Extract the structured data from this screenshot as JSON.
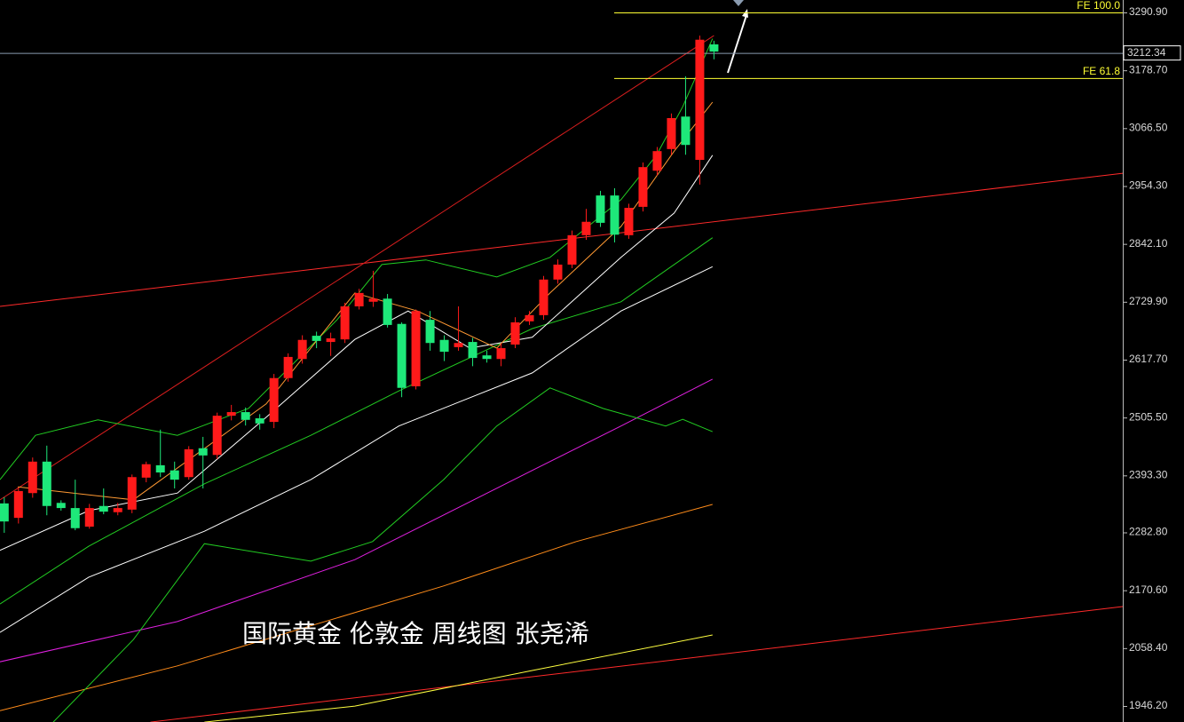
{
  "chart_data": {
    "type": "candlestick",
    "annotation": "国际黄金  伦敦金 周线图 张尧浠",
    "open": [
      2339,
      2311,
      2359,
      2420,
      2340,
      2330,
      2294,
      2334,
      2322,
      2327,
      2389,
      2413,
      2403,
      2390,
      2446,
      2433,
      2509,
      2516,
      2504,
      2497,
      2582,
      2619,
      2664,
      2652,
      2657,
      2721,
      2730,
      2736,
      2687,
      2566,
      2695,
      2656,
      2642,
      2652,
      2626,
      2619,
      2647,
      2692,
      2704,
      2773,
      2802,
      2859,
      2936,
      2936,
      2859,
      2914,
      2984,
      3026,
      3089,
      3005,
      3229
    ],
    "high": [
      2351,
      2370,
      2428,
      2451,
      2345,
      2385,
      2338,
      2368,
      2340,
      2395,
      2420,
      2482,
      2420,
      2450,
      2468,
      2515,
      2530,
      2525,
      2512,
      2590,
      2630,
      2665,
      2672,
      2670,
      2728,
      2755,
      2790,
      2745,
      2690,
      2715,
      2712,
      2665,
      2721,
      2660,
      2635,
      2650,
      2700,
      2712,
      2780,
      2812,
      2868,
      2910,
      2945,
      2950,
      2920,
      3000,
      3030,
      3095,
      3167,
      3246,
      3236
    ],
    "low": [
      2282,
      2300,
      2350,
      2316,
      2325,
      2287,
      2290,
      2318,
      2316,
      2320,
      2380,
      2390,
      2368,
      2385,
      2368,
      2425,
      2500,
      2490,
      2482,
      2485,
      2575,
      2610,
      2640,
      2625,
      2650,
      2715,
      2720,
      2680,
      2545,
      2560,
      2635,
      2615,
      2635,
      2605,
      2612,
      2605,
      2640,
      2685,
      2695,
      2765,
      2795,
      2850,
      2875,
      2845,
      2852,
      2905,
      2975,
      3015,
      3015,
      2957,
      3200
    ],
    "close": [
      2304,
      2363,
      2420,
      2334,
      2330,
      2291,
      2330,
      2323,
      2330,
      2390,
      2415,
      2399,
      2385,
      2444,
      2432,
      2509,
      2516,
      2501,
      2494,
      2582,
      2623,
      2656,
      2654,
      2659,
      2721,
      2747,
      2736,
      2685,
      2563,
      2712,
      2650,
      2633,
      2650,
      2621,
      2619,
      2640,
      2690,
      2704,
      2773,
      2802,
      2859,
      2885,
      2883,
      2860,
      2912,
      2991,
      3022,
      3086,
      3034,
      3238,
      3215
    ],
    "up_color": "#ff1a1a",
    "down_color": "#1ee87a",
    "xlim": [
      -0.3,
      78.8
    ],
    "ylim": [
      1915.2,
      3315.0
    ],
    "yticks": [
      {
        "value": 3290.9,
        "label": "3290.90"
      },
      {
        "value": 3178.7,
        "label": "3178.70"
      },
      {
        "value": 3066.5,
        "label": "3066.50"
      },
      {
        "value": 2954.3,
        "label": "2954.30"
      },
      {
        "value": 2842.1,
        "label": "2842.10"
      },
      {
        "value": 2729.9,
        "label": "2729.90"
      },
      {
        "value": 2617.7,
        "label": "2617.70"
      },
      {
        "value": 2505.5,
        "label": "2505.50"
      },
      {
        "value": 2393.3,
        "label": "2393.30"
      },
      {
        "value": 2282.8,
        "label": "2282.80"
      },
      {
        "value": 2170.6,
        "label": "2170.60"
      },
      {
        "value": 2058.4,
        "label": "2058.40"
      },
      {
        "value": 1946.2,
        "label": "1946.20"
      }
    ],
    "last_price": 3212.34,
    "levels": [
      {
        "value": 3290.9,
        "label": "FE 100.0",
        "color": "#ffff33"
      },
      {
        "value": 3163.6,
        "label": "FE 61.8",
        "color": "#ffff33"
      }
    ],
    "overlays": [
      {
        "color": "#ff2a2a",
        "x": [
          -0.3,
          78.8
        ],
        "values": [
          2721,
          2979
        ]
      },
      {
        "color": "#ff2a2a",
        "x": [
          10.3,
          78.8
        ],
        "values": [
          1915,
          2139
        ]
      },
      {
        "color": "#d81e1e",
        "x": [
          -0.3,
          50
        ],
        "values": [
          2346,
          3246
        ]
      },
      {
        "color": "#ff8c1a",
        "x": [
          -0.3,
          12.2,
          30.95,
          40.3,
          49.9
        ],
        "values": [
          1937,
          2024,
          2179,
          2265,
          2337
        ]
      },
      {
        "color": "#e020e0",
        "x": [
          -0.3,
          12.2,
          24.7,
          37.2,
          43.45,
          49.9
        ],
        "values": [
          2032,
          2110,
          2230,
          2403,
          2489,
          2580
        ]
      },
      {
        "color": "#ffff40",
        "x": [
          14.1,
          24.7,
          37.2,
          49.9
        ],
        "values": [
          1915,
          1946,
          2015,
          2084
        ]
      },
      {
        "color": "#22cc22",
        "x": [
          3.45,
          9.1,
          14.1,
          21.6,
          25.95,
          30.95,
          34.7,
          38.45,
          42.2,
          46.6,
          47.8,
          49.9
        ],
        "values": [
          1915,
          2075,
          2261,
          2227,
          2265,
          2385,
          2489,
          2563,
          2523,
          2489,
          2502,
          2478
        ]
      },
      {
        "color": "#22cc22",
        "x": [
          -0.3,
          2.2,
          6.6,
          12.2,
          17.2,
          23.45,
          26.6,
          29.7,
          34.7,
          38.45,
          43.45,
          45.95,
          47.8,
          49.9
        ],
        "values": [
          2385,
          2471,
          2501,
          2471,
          2523,
          2695,
          2802,
          2811,
          2778,
          2816,
          2928,
          3014,
          3108,
          3240
        ]
      },
      {
        "color": "#22cc22",
        "x": [
          -0.3,
          5.95,
          14.1,
          21.6,
          27.8,
          37.2,
          43.45,
          49.9
        ],
        "values": [
          2144,
          2256,
          2377,
          2471,
          2557,
          2678,
          2730,
          2854
        ]
      },
      {
        "color": "#ffffff",
        "x": [
          -0.3,
          5.95,
          14.1,
          21.6,
          27.8,
          37.2,
          43.45,
          49.9
        ],
        "values": [
          2089,
          2196,
          2285,
          2385,
          2489,
          2592,
          2712,
          2798
        ]
      },
      {
        "color": "#ffffff",
        "x": [
          -0.3,
          5.95,
          12.2,
          18.45,
          24.7,
          28.45,
          32.8,
          37.2,
          43.45,
          47.2,
          49.9
        ],
        "values": [
          2248,
          2325,
          2359,
          2506,
          2657,
          2712,
          2640,
          2661,
          2816,
          2902,
          3014
        ]
      },
      {
        "color": "#ff9933",
        "x": [
          0.95,
          9.1,
          18.45,
          24.7,
          29.1,
          34.7,
          38.45,
          43.45,
          47.2,
          49.9
        ],
        "values": [
          2371,
          2346,
          2532,
          2747,
          2712,
          2640,
          2747,
          2876,
          3022,
          3117
        ]
      }
    ]
  }
}
